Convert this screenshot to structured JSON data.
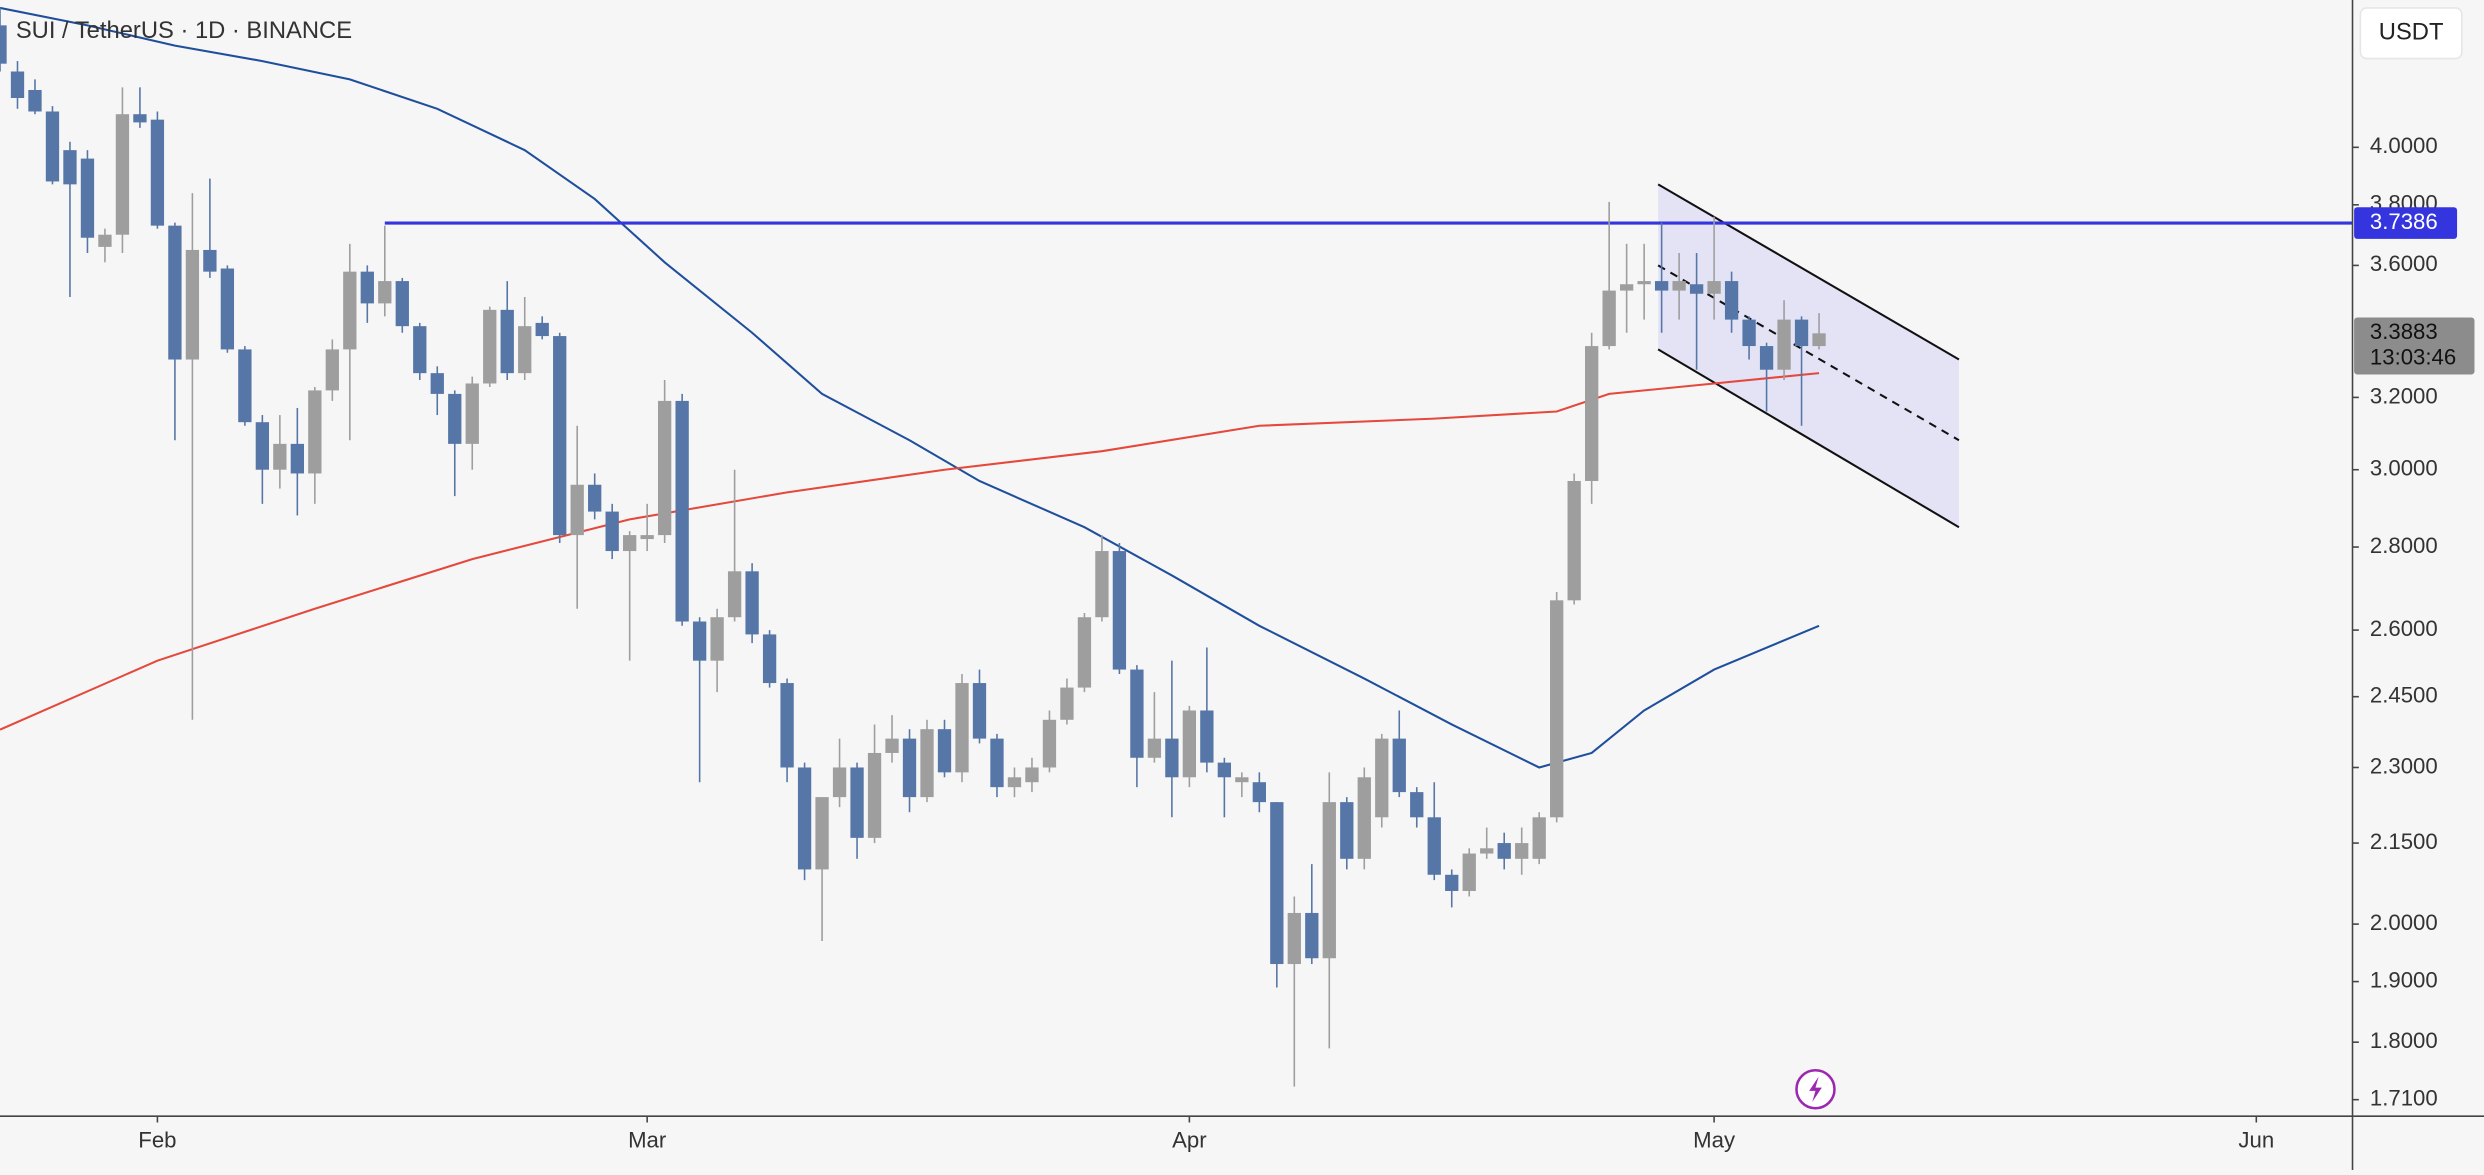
{
  "header": {
    "title": "SUI / TetherUS · 1D · BINANCE",
    "currency_button": "USDT"
  },
  "chart_data": {
    "type": "candlestick",
    "log_scale": true,
    "bull_color": "#9e9e9e",
    "bear_color": "#5676a8",
    "ylim": [
      1.685,
      4.562
    ],
    "yticks": [
      {
        "value": 4,
        "label": "4.0000"
      },
      {
        "value": 3.8,
        "label": "3.8000"
      },
      {
        "value": 3.6,
        "label": "3.6000"
      },
      {
        "value": 3.2,
        "label": "3.2000"
      },
      {
        "value": 3,
        "label": "3.0000"
      },
      {
        "value": 2.8,
        "label": "2.8000"
      },
      {
        "value": 2.6,
        "label": "2.6000"
      },
      {
        "value": 2.45,
        "label": "2.4500"
      },
      {
        "value": 2.3,
        "label": "2.3000"
      },
      {
        "value": 2.15,
        "label": "2.1500"
      },
      {
        "value": 2,
        "label": "2.0000"
      },
      {
        "value": 1.9,
        "label": "1.9000"
      },
      {
        "value": 1.8,
        "label": "1.8000"
      },
      {
        "value": 1.71,
        "label": "1.7100"
      }
    ],
    "xlim": [
      0,
      134.5
    ],
    "xticks": [
      {
        "value": 9,
        "label": "Feb"
      },
      {
        "value": 37,
        "label": "Mar"
      },
      {
        "value": 68,
        "label": "Apr"
      },
      {
        "value": 98,
        "label": "May"
      },
      {
        "value": 129,
        "label": "Jun"
      }
    ],
    "candles": [
      [
        4.46,
        4.53,
        4.28,
        4.31
      ],
      [
        4.28,
        4.32,
        4.14,
        4.18
      ],
      [
        4.21,
        4.25,
        4.12,
        4.13
      ],
      [
        4.13,
        4.15,
        3.87,
        3.88
      ],
      [
        3.99,
        4.02,
        3.5,
        3.87
      ],
      [
        3.96,
        3.99,
        3.64,
        3.69
      ],
      [
        3.66,
        3.72,
        3.61,
        3.7
      ],
      [
        3.7,
        4.22,
        3.64,
        4.12
      ],
      [
        4.12,
        4.22,
        4.07,
        4.09
      ],
      [
        4.1,
        4.13,
        3.72,
        3.73
      ],
      [
        3.73,
        3.74,
        3.08,
        3.31
      ],
      [
        3.31,
        3.84,
        2.4,
        3.65
      ],
      [
        3.65,
        3.89,
        3.56,
        3.58
      ],
      [
        3.59,
        3.6,
        3.33,
        3.34
      ],
      [
        3.34,
        3.35,
        3.12,
        3.13
      ],
      [
        3.13,
        3.15,
        2.91,
        3.0
      ],
      [
        3.0,
        3.15,
        2.95,
        3.07
      ],
      [
        3.07,
        3.17,
        2.88,
        2.99
      ],
      [
        2.99,
        3.23,
        2.91,
        3.22
      ],
      [
        3.22,
        3.37,
        3.19,
        3.34
      ],
      [
        3.34,
        3.67,
        3.08,
        3.58
      ],
      [
        3.58,
        3.6,
        3.42,
        3.48
      ],
      [
        3.48,
        3.73,
        3.44,
        3.55
      ],
      [
        3.55,
        3.56,
        3.39,
        3.41
      ],
      [
        3.41,
        3.42,
        3.25,
        3.27
      ],
      [
        3.27,
        3.29,
        3.15,
        3.21
      ],
      [
        3.21,
        3.22,
        2.93,
        3.07
      ],
      [
        3.07,
        3.26,
        3.0,
        3.24
      ],
      [
        3.24,
        3.47,
        3.23,
        3.46
      ],
      [
        3.46,
        3.55,
        3.25,
        3.27
      ],
      [
        3.27,
        3.5,
        3.25,
        3.41
      ],
      [
        3.42,
        3.44,
        3.37,
        3.38
      ],
      [
        3.38,
        3.39,
        2.81,
        2.83
      ],
      [
        2.83,
        3.12,
        2.65,
        2.96
      ],
      [
        2.96,
        2.99,
        2.87,
        2.89
      ],
      [
        2.89,
        2.91,
        2.77,
        2.79
      ],
      [
        2.79,
        2.84,
        2.53,
        2.83
      ],
      [
        2.82,
        2.91,
        2.79,
        2.83
      ],
      [
        2.83,
        3.25,
        2.81,
        3.19
      ],
      [
        3.19,
        3.21,
        2.61,
        2.62
      ],
      [
        2.62,
        2.63,
        2.27,
        2.53
      ],
      [
        2.53,
        2.65,
        2.46,
        2.63
      ],
      [
        2.63,
        3.0,
        2.62,
        2.74
      ],
      [
        2.74,
        2.76,
        2.57,
        2.59
      ],
      [
        2.59,
        2.6,
        2.47,
        2.48
      ],
      [
        2.48,
        2.49,
        2.27,
        2.3
      ],
      [
        2.3,
        2.31,
        2.08,
        2.1
      ],
      [
        2.1,
        2.24,
        1.97,
        2.24
      ],
      [
        2.24,
        2.36,
        2.22,
        2.3
      ],
      [
        2.3,
        2.31,
        2.12,
        2.16
      ],
      [
        2.16,
        2.39,
        2.15,
        2.33
      ],
      [
        2.33,
        2.41,
        2.31,
        2.36
      ],
      [
        2.36,
        2.38,
        2.21,
        2.24
      ],
      [
        2.24,
        2.4,
        2.23,
        2.38
      ],
      [
        2.38,
        2.4,
        2.28,
        2.29
      ],
      [
        2.29,
        2.5,
        2.27,
        2.48
      ],
      [
        2.48,
        2.51,
        2.35,
        2.36
      ],
      [
        2.36,
        2.37,
        2.24,
        2.26
      ],
      [
        2.26,
        2.3,
        2.24,
        2.28
      ],
      [
        2.27,
        2.32,
        2.25,
        2.3
      ],
      [
        2.3,
        2.42,
        2.29,
        2.4
      ],
      [
        2.4,
        2.49,
        2.39,
        2.47
      ],
      [
        2.47,
        2.64,
        2.46,
        2.63
      ],
      [
        2.63,
        2.83,
        2.62,
        2.79
      ],
      [
        2.79,
        2.81,
        2.5,
        2.51
      ],
      [
        2.51,
        2.52,
        2.26,
        2.32
      ],
      [
        2.32,
        2.46,
        2.31,
        2.36
      ],
      [
        2.36,
        2.53,
        2.2,
        2.28
      ],
      [
        2.28,
        2.43,
        2.26,
        2.42
      ],
      [
        2.42,
        2.56,
        2.29,
        2.31
      ],
      [
        2.31,
        2.32,
        2.2,
        2.28
      ],
      [
        2.27,
        2.29,
        2.24,
        2.28
      ],
      [
        2.27,
        2.29,
        2.21,
        2.23
      ],
      [
        2.23,
        2.23,
        1.89,
        1.93
      ],
      [
        1.93,
        2.05,
        1.73,
        2.02
      ],
      [
        2.02,
        2.11,
        1.93,
        1.94
      ],
      [
        1.94,
        2.29,
        1.79,
        2.23
      ],
      [
        2.23,
        2.24,
        2.1,
        2.12
      ],
      [
        2.12,
        2.3,
        2.1,
        2.28
      ],
      [
        2.2,
        2.37,
        2.18,
        2.36
      ],
      [
        2.36,
        2.42,
        2.24,
        2.25
      ],
      [
        2.25,
        2.26,
        2.18,
        2.2
      ],
      [
        2.2,
        2.27,
        2.08,
        2.09
      ],
      [
        2.09,
        2.1,
        2.03,
        2.06
      ],
      [
        2.06,
        2.14,
        2.05,
        2.13
      ],
      [
        2.13,
        2.18,
        2.12,
        2.14
      ],
      [
        2.15,
        2.17,
        2.1,
        2.12
      ],
      [
        2.12,
        2.18,
        2.09,
        2.15
      ],
      [
        2.12,
        2.21,
        2.11,
        2.2
      ],
      [
        2.2,
        2.69,
        2.19,
        2.67
      ],
      [
        2.67,
        2.99,
        2.66,
        2.97
      ],
      [
        2.97,
        3.39,
        2.91,
        3.35
      ],
      [
        3.35,
        3.81,
        3.34,
        3.52
      ],
      [
        3.52,
        3.67,
        3.39,
        3.54
      ],
      [
        3.54,
        3.67,
        3.43,
        3.55
      ],
      [
        3.55,
        3.74,
        3.39,
        3.52
      ],
      [
        3.52,
        3.64,
        3.43,
        3.55
      ],
      [
        3.54,
        3.64,
        3.28,
        3.51
      ],
      [
        3.51,
        3.76,
        3.43,
        3.55
      ],
      [
        3.55,
        3.58,
        3.39,
        3.43
      ],
      [
        3.43,
        3.44,
        3.31,
        3.35
      ],
      [
        3.35,
        3.36,
        3.16,
        3.28
      ],
      [
        3.28,
        3.49,
        3.25,
        3.43
      ],
      [
        3.43,
        3.44,
        3.12,
        3.35
      ],
      [
        3.35,
        3.45,
        3.34,
        3.3883
      ]
    ],
    "lines": [
      {
        "color": "#1f4f9c",
        "x": [
          0,
          5,
          10,
          15,
          20,
          25,
          30,
          34,
          38,
          43,
          47,
          52,
          56,
          62,
          67,
          72,
          78,
          83,
          88,
          91,
          94,
          98,
          104
        ],
        "values": [
          4.53,
          4.46,
          4.38,
          4.32,
          4.25,
          4.14,
          3.99,
          3.82,
          3.61,
          3.39,
          3.21,
          3.08,
          2.97,
          2.85,
          2.73,
          2.61,
          2.49,
          2.39,
          2.3,
          2.33,
          2.42,
          2.51,
          2.61
        ]
      },
      {
        "color": "#e5483c",
        "x": [
          0,
          9,
          18,
          27,
          36,
          45,
          54,
          63,
          72,
          82,
          89,
          92,
          98,
          104
        ],
        "values": [
          2.379,
          2.53,
          2.65,
          2.77,
          2.87,
          2.94,
          3.0,
          3.05,
          3.12,
          3.14,
          3.16,
          3.21,
          3.24,
          3.27
        ]
      }
    ],
    "level": {
      "value": 3.7386,
      "x_start": 22,
      "color": "#3535e0"
    },
    "current_price": {
      "value": 3.3883,
      "countdown": "13:03:46"
    },
    "channel": {
      "x": [
        94.8,
        112
      ],
      "upper": [
        3.87,
        3.31
      ],
      "middle": [
        3.6,
        3.08
      ],
      "lower": [
        3.34,
        2.85
      ],
      "color": "#111111",
      "fill": "#dcdcf5"
    }
  }
}
